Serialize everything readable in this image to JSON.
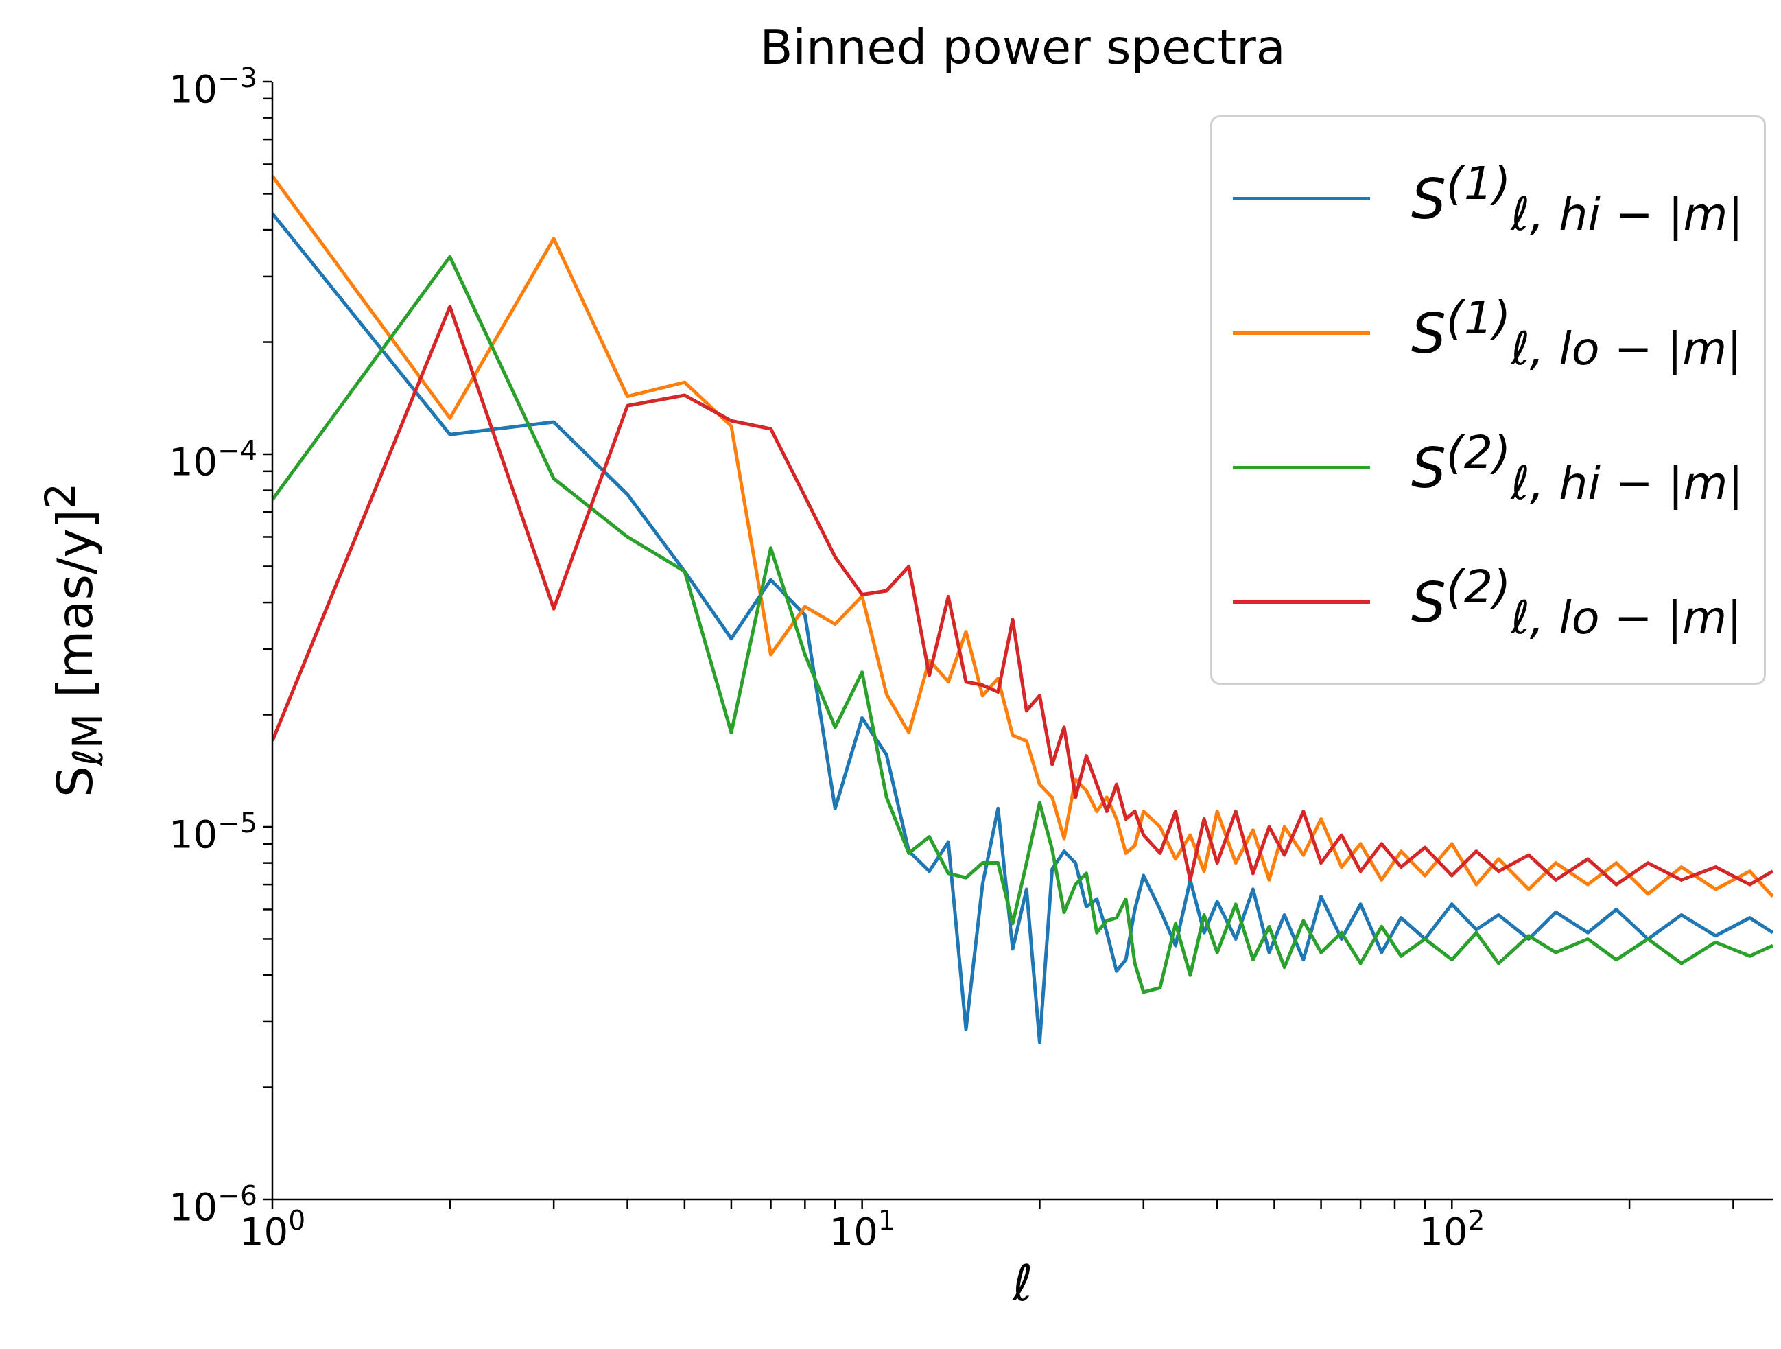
{
  "chart_data": {
    "type": "line",
    "title": "Binned power spectra",
    "xlabel": "ℓ",
    "ylabel": "S$_{ℓM}$ [mas/y]$^{2}$",
    "log": "xy",
    "grid": false,
    "legend": "top right",
    "marker": "none",
    "line_style": "solid",
    "x": [
      1,
      2,
      3,
      4,
      5,
      6,
      7,
      8,
      9,
      10,
      11,
      12,
      13,
      14,
      15,
      16,
      17,
      18,
      19,
      20,
      21,
      22,
      23,
      24,
      25,
      26,
      27,
      28,
      29,
      30,
      32,
      34,
      36,
      38,
      40,
      43,
      46,
      49,
      52,
      56,
      60,
      65,
      70,
      76,
      82,
      90,
      100,
      110,
      120,
      135,
      150,
      170,
      190,
      215,
      245,
      280,
      320,
      350
    ],
    "xlim": [
      1,
      350
    ],
    "xticks": [
      {
        "value": 1,
        "label": "10$^{0}$"
      },
      {
        "value": 2,
        "label": null
      },
      {
        "value": 3,
        "label": null
      },
      {
        "value": 4,
        "label": null
      },
      {
        "value": 5,
        "label": null
      },
      {
        "value": 6,
        "label": null
      },
      {
        "value": 7,
        "label": null
      },
      {
        "value": 8,
        "label": null
      },
      {
        "value": 9,
        "label": null
      },
      {
        "value": 10,
        "label": "10$^{1}$"
      },
      {
        "value": 20,
        "label": null
      },
      {
        "value": 30,
        "label": null
      },
      {
        "value": 40,
        "label": null
      },
      {
        "value": 50,
        "label": null
      },
      {
        "value": 60,
        "label": null
      },
      {
        "value": 70,
        "label": null
      },
      {
        "value": 80,
        "label": null
      },
      {
        "value": 90,
        "label": null
      },
      {
        "value": 100,
        "label": "10$^{2}$"
      },
      {
        "value": 200,
        "label": null
      },
      {
        "value": 300,
        "label": null
      }
    ],
    "ylim": [
      1e-06,
      0.001
    ],
    "yticks": [
      {
        "value": 1e-06,
        "label": "10$^{−6}$"
      },
      {
        "value": 2e-06,
        "label": null
      },
      {
        "value": 3e-06,
        "label": null
      },
      {
        "value": 4e-06,
        "label": null
      },
      {
        "value": 5e-06,
        "label": null
      },
      {
        "value": 6e-06,
        "label": null
      },
      {
        "value": 7e-06,
        "label": null
      },
      {
        "value": 8e-06,
        "label": null
      },
      {
        "value": 9e-06,
        "label": null
      },
      {
        "value": 1e-05,
        "label": "10$^{−5}$"
      },
      {
        "value": 2e-05,
        "label": null
      },
      {
        "value": 3e-05,
        "label": null
      },
      {
        "value": 4e-05,
        "label": null
      },
      {
        "value": 5e-05,
        "label": null
      },
      {
        "value": 6e-05,
        "label": null
      },
      {
        "value": 7e-05,
        "label": null
      },
      {
        "value": 8e-05,
        "label": null
      },
      {
        "value": 9e-05,
        "label": null
      },
      {
        "value": 0.0001,
        "label": "10$^{−4}$"
      },
      {
        "value": 0.0002,
        "label": null
      },
      {
        "value": 0.0003,
        "label": null
      },
      {
        "value": 0.0004,
        "label": null
      },
      {
        "value": 0.0005,
        "label": null
      },
      {
        "value": 0.0006,
        "label": null
      },
      {
        "value": 0.0007,
        "label": null
      },
      {
        "value": 0.0008,
        "label": null
      },
      {
        "value": 0.0009,
        "label": null
      },
      {
        "value": 0.001,
        "label": "10$^{−3}$"
      }
    ],
    "series": [
      {
        "name": "S$^{(1)}$$_{ℓ, hi − |m|}$",
        "color": "#1f77b4",
        "values": [
          0.000443,
          0.000113,
          0.000122,
          7.8e-05,
          4.85e-05,
          3.2e-05,
          4.6e-05,
          3.7e-05,
          1.12e-05,
          1.96e-05,
          1.56e-05,
          8.6e-06,
          7.6e-06,
          9.1e-06,
          2.86e-06,
          7e-06,
          1.12e-05,
          4.7e-06,
          6.8e-06,
          2.64e-06,
          7.7e-06,
          8.6e-06,
          8e-06,
          6.1e-06,
          6.4e-06,
          5.2e-06,
          4.1e-06,
          4.4e-06,
          6e-06,
          7.4e-06,
          6e-06,
          4.8e-06,
          7.2e-06,
          5.2e-06,
          6.3e-06,
          5e-06,
          6.8e-06,
          4.6e-06,
          5.8e-06,
          4.4e-06,
          6.5e-06,
          5e-06,
          6.2e-06,
          4.6e-06,
          5.7e-06,
          5e-06,
          6.2e-06,
          5.3e-06,
          5.8e-06,
          5e-06,
          5.9e-06,
          5.2e-06,
          6e-06,
          5e-06,
          5.8e-06,
          5.1e-06,
          5.7e-06,
          5.2e-06
        ]
      },
      {
        "name": "S$^{(1)}$$_{ℓ, lo − |m|}$",
        "color": "#ff7f0e",
        "values": [
          0.000558,
          0.000125,
          0.000379,
          0.000143,
          0.000156,
          0.000119,
          2.9e-05,
          3.9e-05,
          3.5e-05,
          4.16e-05,
          2.27e-05,
          1.79e-05,
          2.8e-05,
          2.45e-05,
          3.34e-05,
          2.25e-05,
          2.5e-05,
          1.76e-05,
          1.7e-05,
          1.3e-05,
          1.2e-05,
          9.3e-06,
          1.34e-05,
          1.25e-05,
          1.1e-05,
          1.2e-05,
          1.05e-05,
          8.5e-06,
          8.9e-06,
          1.1e-05,
          1e-05,
          8.2e-06,
          9.5e-06,
          7.6e-06,
          1.1e-05,
          8e-06,
          9.8e-06,
          7.2e-06,
          1e-05,
          8.4e-06,
          1.05e-05,
          7.8e-06,
          9e-06,
          7.2e-06,
          8.6e-06,
          7.4e-06,
          9e-06,
          7e-06,
          8.2e-06,
          6.8e-06,
          8e-06,
          7e-06,
          8e-06,
          6.6e-06,
          7.8e-06,
          6.8e-06,
          7.6e-06,
          6.5e-06
        ]
      },
      {
        "name": "S$^{(2)}$$_{ℓ, hi − |m|}$",
        "color": "#2ca02c",
        "values": [
          7.55e-05,
          0.000339,
          8.6e-05,
          6e-05,
          4.85e-05,
          1.79e-05,
          5.6e-05,
          2.9e-05,
          1.85e-05,
          2.6e-05,
          1.2e-05,
          8.5e-06,
          9.4e-06,
          7.5e-06,
          7.3e-06,
          8e-06,
          8e-06,
          5.5e-06,
          8e-06,
          1.16e-05,
          8.7e-06,
          5.9e-06,
          7e-06,
          7.5e-06,
          5.2e-06,
          5.6e-06,
          5.7e-06,
          6.4e-06,
          4.3e-06,
          3.6e-06,
          3.7e-06,
          5.5e-06,
          4e-06,
          5.8e-06,
          4.6e-06,
          6.2e-06,
          4.4e-06,
          5.4e-06,
          4.2e-06,
          5.6e-06,
          4.6e-06,
          5.2e-06,
          4.3e-06,
          5.4e-06,
          4.5e-06,
          5e-06,
          4.4e-06,
          5.2e-06,
          4.3e-06,
          5.1e-06,
          4.6e-06,
          5e-06,
          4.4e-06,
          5e-06,
          4.3e-06,
          4.9e-06,
          4.5e-06,
          4.8e-06
        ]
      },
      {
        "name": "S$^{(2)}$$_{ℓ, lo − |m|}$",
        "color": "#d62728",
        "values": [
          1.7e-05,
          0.000249,
          3.85e-05,
          0.000135,
          0.000144,
          0.000123,
          0.000117,
          7.7e-05,
          5.3e-05,
          4.2e-05,
          4.3e-05,
          5e-05,
          2.55e-05,
          4.15e-05,
          2.45e-05,
          2.4e-05,
          2.3e-05,
          3.6e-05,
          2.05e-05,
          2.25e-05,
          1.47e-05,
          1.85e-05,
          1.2e-05,
          1.55e-05,
          1.3e-05,
          1.1e-05,
          1.3e-05,
          1.05e-05,
          1.1e-05,
          9.5e-06,
          8.5e-06,
          1.1e-05,
          7.2e-06,
          1.05e-05,
          8e-06,
          1.1e-05,
          7.5e-06,
          1e-05,
          8.4e-06,
          1.1e-05,
          8e-06,
          9.5e-06,
          7.6e-06,
          9e-06,
          7.8e-06,
          8.8e-06,
          7.4e-06,
          8.6e-06,
          7.6e-06,
          8.4e-06,
          7.2e-06,
          8.2e-06,
          7e-06,
          8e-06,
          7.2e-06,
          7.8e-06,
          7e-06,
          7.6e-06
        ]
      }
    ]
  }
}
